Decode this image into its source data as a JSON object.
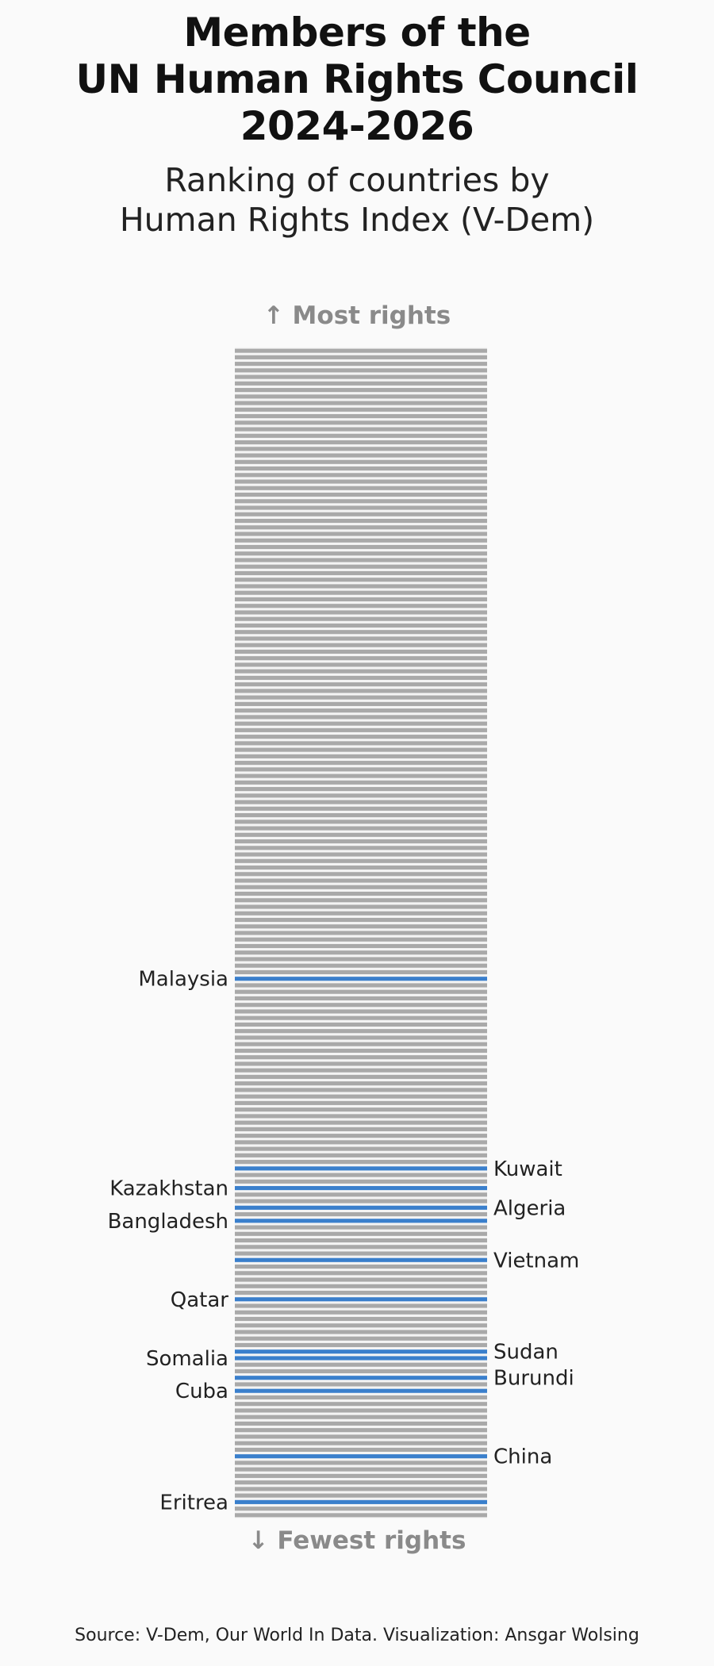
{
  "chart_data": {
    "type": "bar",
    "title": [
      "Members of the",
      "UN Human Rights Council",
      "2024-2026"
    ],
    "subtitle": [
      "Ranking of countries by",
      "Human Rights Index (V-Dem)"
    ],
    "top_label": "↑ Most rights",
    "bottom_label": "↓ Fewest rights",
    "total_countries": 179,
    "base_color": "#a9a9a9",
    "highlight_color": "#3a7fcc",
    "highlighted": [
      {
        "name": "Malaysia",
        "rank": 97,
        "side": "left"
      },
      {
        "name": "Kuwait",
        "rank": 126,
        "side": "right"
      },
      {
        "name": "Kazakhstan",
        "rank": 129,
        "side": "left"
      },
      {
        "name": "Algeria",
        "rank": 132,
        "side": "right"
      },
      {
        "name": "Bangladesh",
        "rank": 134,
        "side": "left"
      },
      {
        "name": "Vietnam",
        "rank": 140,
        "side": "right"
      },
      {
        "name": "Qatar",
        "rank": 146,
        "side": "left"
      },
      {
        "name": "Sudan",
        "rank": 154,
        "side": "right"
      },
      {
        "name": "Somalia",
        "rank": 155,
        "side": "left"
      },
      {
        "name": "Burundi",
        "rank": 158,
        "side": "right"
      },
      {
        "name": "Cuba",
        "rank": 160,
        "side": "left"
      },
      {
        "name": "China",
        "rank": 170,
        "side": "right"
      },
      {
        "name": "Eritrea",
        "rank": 177,
        "side": "left"
      }
    ]
  },
  "caption": "Source: V-Dem, Our World In Data. Visualization: Ansgar Wolsing"
}
